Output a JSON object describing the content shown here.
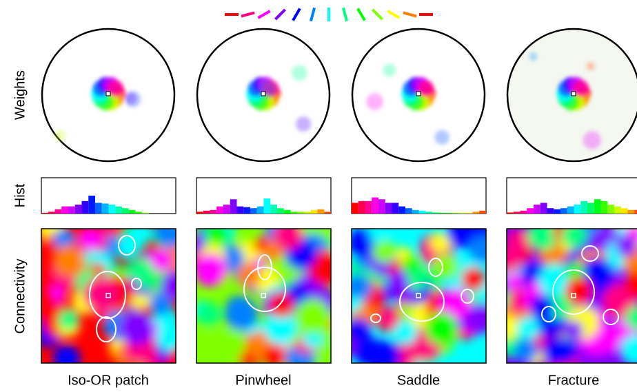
{
  "row_labels": [
    "Weights",
    "Hist",
    "Connectivity"
  ],
  "columns": [
    {
      "label": "Iso-OR patch",
      "histogram": [
        0.02,
        0.05,
        0.12,
        0.2,
        0.2,
        0.25,
        0.35,
        0.5,
        0.3,
        0.28,
        0.25,
        0.2,
        0.15,
        0.1,
        0.05,
        0.02,
        0,
        0,
        0,
        0
      ]
    },
    {
      "label": "Pinwheel",
      "histogram": [
        0.05,
        0.08,
        0.1,
        0.2,
        0.25,
        0.4,
        0.2,
        0.18,
        0.15,
        0.2,
        0.42,
        0.25,
        0.15,
        0.1,
        0.05,
        0.05,
        0.05,
        0.1,
        0.12,
        0.05
      ]
    },
    {
      "label": "Saddle",
      "histogram": [
        0.3,
        0.35,
        0.35,
        0.45,
        0.4,
        0.3,
        0.3,
        0.2,
        0.15,
        0.1,
        0.08,
        0.05,
        0.03,
        0.02,
        0.02,
        0.02,
        0.02,
        0.02,
        0.05,
        0.08
      ]
    },
    {
      "label": "Fracture",
      "histogram": [
        0.03,
        0.05,
        0.08,
        0.15,
        0.25,
        0.3,
        0.15,
        0.12,
        0.15,
        0.2,
        0.25,
        0.35,
        0.3,
        0.4,
        0.35,
        0.25,
        0.2,
        0.15,
        0.1,
        0.1
      ]
    }
  ]
}
